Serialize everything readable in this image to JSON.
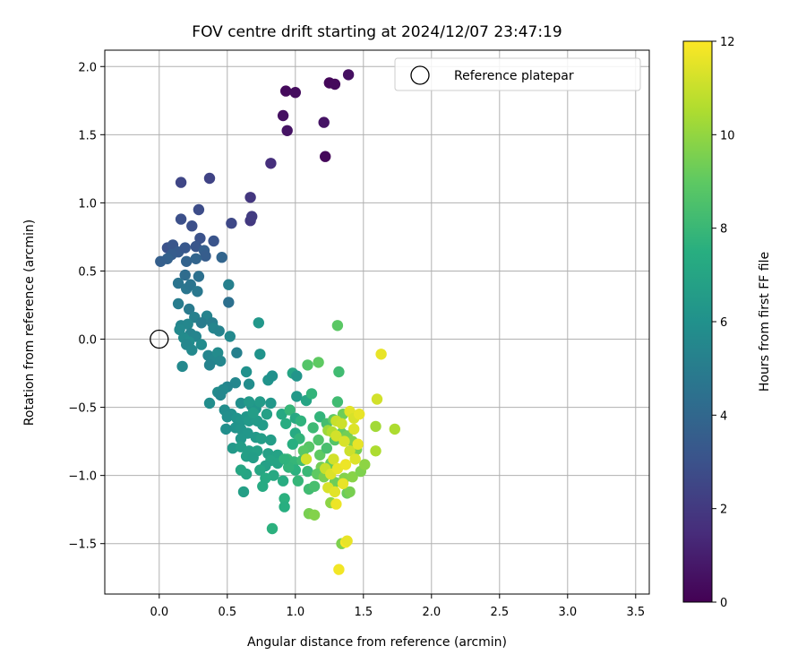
{
  "chart_data": {
    "type": "scatter",
    "title": "FOV centre drift starting at 2024/12/07 23:47:19",
    "xlabel": "Angular distance from reference (arcmin)",
    "ylabel": "Rotation from reference (arcmin)",
    "colorbar_label": "Hours from first FF file",
    "colormap": "viridis",
    "colorbar_range": [
      0,
      12
    ],
    "colorbar_ticks": [
      0,
      2,
      4,
      6,
      8,
      10,
      12
    ],
    "xlim": [
      -0.4,
      3.6
    ],
    "ylim": [
      -1.87,
      2.12
    ],
    "xticks": [
      0.0,
      0.5,
      1.0,
      1.5,
      2.0,
      2.5,
      3.0,
      3.5
    ],
    "xtick_labels": [
      "0.0",
      "0.5",
      "1.0",
      "1.5",
      "2.0",
      "2.5",
      "3.0",
      "3.5"
    ],
    "yticks": [
      -1.5,
      -1.0,
      -0.5,
      0.0,
      0.5,
      1.0,
      1.5,
      2.0
    ],
    "ytick_labels": [
      "−1.5",
      "−1.0",
      "−0.5",
      "0.0",
      "0.5",
      "1.0",
      "1.5",
      "2.0"
    ],
    "grid": true,
    "legend_position": "top-right",
    "reference": {
      "label": "Reference platepar",
      "x": 0.0,
      "y": 0.0
    },
    "points": [
      {
        "x": 0.93,
        "y": 1.82,
        "h": 0.3
      },
      {
        "x": 1.0,
        "y": 1.81,
        "h": 0.4
      },
      {
        "x": 1.25,
        "y": 1.88,
        "h": 0.2
      },
      {
        "x": 1.29,
        "y": 1.87,
        "h": 0.3
      },
      {
        "x": 1.39,
        "y": 1.94,
        "h": 0.5
      },
      {
        "x": 0.91,
        "y": 1.64,
        "h": 0.5
      },
      {
        "x": 0.94,
        "y": 1.53,
        "h": 0.6
      },
      {
        "x": 1.21,
        "y": 1.59,
        "h": 0.6
      },
      {
        "x": 1.22,
        "y": 1.34,
        "h": 0.2
      },
      {
        "x": 0.82,
        "y": 1.29,
        "h": 1.6
      },
      {
        "x": 0.67,
        "y": 1.04,
        "h": 1.9
      },
      {
        "x": 0.67,
        "y": 0.87,
        "h": 2.0
      },
      {
        "x": 0.68,
        "y": 0.9,
        "h": 2.1
      },
      {
        "x": 0.53,
        "y": 0.85,
        "h": 2.6
      },
      {
        "x": 0.37,
        "y": 1.18,
        "h": 2.4
      },
      {
        "x": 0.16,
        "y": 1.15,
        "h": 2.5
      },
      {
        "x": 0.29,
        "y": 0.95,
        "h": 2.8
      },
      {
        "x": 0.16,
        "y": 0.88,
        "h": 2.9
      },
      {
        "x": 0.24,
        "y": 0.83,
        "h": 2.9
      },
      {
        "x": 0.3,
        "y": 0.74,
        "h": 3.0
      },
      {
        "x": 0.4,
        "y": 0.72,
        "h": 3.1
      },
      {
        "x": 0.06,
        "y": 0.67,
        "h": 3.0
      },
      {
        "x": 0.1,
        "y": 0.69,
        "h": 3.2
      },
      {
        "x": 0.14,
        "y": 0.64,
        "h": 3.4
      },
      {
        "x": 0.19,
        "y": 0.67,
        "h": 3.3
      },
      {
        "x": 0.27,
        "y": 0.68,
        "h": 3.2
      },
      {
        "x": 0.33,
        "y": 0.65,
        "h": 3.6
      },
      {
        "x": 0.34,
        "y": 0.61,
        "h": 3.5
      },
      {
        "x": 0.09,
        "y": 0.62,
        "h": 3.5
      },
      {
        "x": 0.06,
        "y": 0.59,
        "h": 3.7
      },
      {
        "x": 0.01,
        "y": 0.57,
        "h": 3.6
      },
      {
        "x": 0.2,
        "y": 0.57,
        "h": 3.8
      },
      {
        "x": 0.27,
        "y": 0.59,
        "h": 3.9
      },
      {
        "x": 0.46,
        "y": 0.6,
        "h": 3.9
      },
      {
        "x": 0.19,
        "y": 0.47,
        "h": 4.2
      },
      {
        "x": 0.29,
        "y": 0.46,
        "h": 4.4
      },
      {
        "x": 0.14,
        "y": 0.41,
        "h": 4.6
      },
      {
        "x": 0.2,
        "y": 0.37,
        "h": 4.7
      },
      {
        "x": 0.23,
        "y": 0.4,
        "h": 4.6
      },
      {
        "x": 0.28,
        "y": 0.35,
        "h": 4.8
      },
      {
        "x": 0.51,
        "y": 0.4,
        "h": 5.2
      },
      {
        "x": 0.51,
        "y": 0.27,
        "h": 4.4
      },
      {
        "x": 0.14,
        "y": 0.26,
        "h": 5.0
      },
      {
        "x": 0.22,
        "y": 0.22,
        "h": 4.9
      },
      {
        "x": 0.26,
        "y": 0.16,
        "h": 5.2
      },
      {
        "x": 0.35,
        "y": 0.17,
        "h": 5.3
      },
      {
        "x": 0.31,
        "y": 0.12,
        "h": 5.0
      },
      {
        "x": 0.16,
        "y": 0.1,
        "h": 5.4
      },
      {
        "x": 0.21,
        "y": 0.11,
        "h": 5.5
      },
      {
        "x": 0.39,
        "y": 0.12,
        "h": 5.1
      },
      {
        "x": 0.4,
        "y": 0.08,
        "h": 5.4
      },
      {
        "x": 0.44,
        "y": 0.06,
        "h": 5.3
      },
      {
        "x": 0.15,
        "y": 0.07,
        "h": 5.6
      },
      {
        "x": 0.23,
        "y": 0.04,
        "h": 5.3
      },
      {
        "x": 0.27,
        "y": 0.02,
        "h": 5.4
      },
      {
        "x": 0.52,
        "y": 0.02,
        "h": 5.6
      },
      {
        "x": 0.18,
        "y": 0.01,
        "h": 5.7
      },
      {
        "x": 0.22,
        "y": -0.02,
        "h": 5.8
      },
      {
        "x": 0.2,
        "y": -0.04,
        "h": 5.5
      },
      {
        "x": 0.31,
        "y": -0.04,
        "h": 5.7
      },
      {
        "x": 0.24,
        "y": -0.08,
        "h": 5.6
      },
      {
        "x": 0.36,
        "y": -0.12,
        "h": 5.4
      },
      {
        "x": 0.4,
        "y": -0.15,
        "h": 5.5
      },
      {
        "x": 0.43,
        "y": -0.1,
        "h": 5.7
      },
      {
        "x": 0.57,
        "y": -0.1,
        "h": 5.2
      },
      {
        "x": 0.37,
        "y": -0.19,
        "h": 5.3
      },
      {
        "x": 0.45,
        "y": -0.16,
        "h": 5.5
      },
      {
        "x": 0.17,
        "y": -0.2,
        "h": 5.6
      },
      {
        "x": 0.73,
        "y": 0.12,
        "h": 6.3
      },
      {
        "x": 0.74,
        "y": -0.11,
        "h": 6.1
      },
      {
        "x": 0.64,
        "y": -0.24,
        "h": 6.0
      },
      {
        "x": 0.8,
        "y": -0.3,
        "h": 6.1
      },
      {
        "x": 0.83,
        "y": -0.27,
        "h": 6.0
      },
      {
        "x": 0.66,
        "y": -0.33,
        "h": 5.8
      },
      {
        "x": 0.56,
        "y": -0.32,
        "h": 5.5
      },
      {
        "x": 0.5,
        "y": -0.35,
        "h": 5.4
      },
      {
        "x": 0.47,
        "y": -0.37,
        "h": 5.6
      },
      {
        "x": 0.43,
        "y": -0.39,
        "h": 5.7
      },
      {
        "x": 0.45,
        "y": -0.41,
        "h": 5.5
      },
      {
        "x": 0.37,
        "y": -0.47,
        "h": 5.8
      },
      {
        "x": 0.6,
        "y": -0.47,
        "h": 5.9
      },
      {
        "x": 0.68,
        "y": -0.49,
        "h": 6.0
      },
      {
        "x": 0.71,
        "y": -0.51,
        "h": 6.2
      },
      {
        "x": 0.53,
        "y": -0.55,
        "h": 6.0
      },
      {
        "x": 0.48,
        "y": -0.52,
        "h": 5.8
      },
      {
        "x": 0.5,
        "y": -0.57,
        "h": 5.9
      },
      {
        "x": 0.57,
        "y": -0.58,
        "h": 6.1
      },
      {
        "x": 0.6,
        "y": -0.6,
        "h": 6.2
      },
      {
        "x": 0.64,
        "y": -0.57,
        "h": 6.3
      },
      {
        "x": 0.66,
        "y": -0.6,
        "h": 6.4
      },
      {
        "x": 0.72,
        "y": -0.6,
        "h": 6.5
      },
      {
        "x": 0.76,
        "y": -0.63,
        "h": 6.5
      },
      {
        "x": 0.56,
        "y": -0.65,
        "h": 6.1
      },
      {
        "x": 0.49,
        "y": -0.66,
        "h": 5.9
      },
      {
        "x": 0.6,
        "y": -0.66,
        "h": 6.2
      },
      {
        "x": 0.65,
        "y": -0.69,
        "h": 6.3
      },
      {
        "x": 0.71,
        "y": -0.72,
        "h": 6.4
      },
      {
        "x": 0.75,
        "y": -0.73,
        "h": 6.6
      },
      {
        "x": 0.82,
        "y": -0.74,
        "h": 6.6
      },
      {
        "x": 0.6,
        "y": -0.73,
        "h": 6.3
      },
      {
        "x": 0.54,
        "y": -0.8,
        "h": 6.4
      },
      {
        "x": 0.6,
        "y": -0.79,
        "h": 6.6
      },
      {
        "x": 0.66,
        "y": -0.82,
        "h": 6.7
      },
      {
        "x": 0.72,
        "y": -0.82,
        "h": 6.8
      },
      {
        "x": 0.64,
        "y": -0.86,
        "h": 6.7
      },
      {
        "x": 0.69,
        "y": -0.87,
        "h": 6.6
      },
      {
        "x": 0.8,
        "y": -0.84,
        "h": 6.8
      },
      {
        "x": 0.87,
        "y": -0.85,
        "h": 6.9
      },
      {
        "x": 0.82,
        "y": -0.89,
        "h": 7.0
      },
      {
        "x": 0.78,
        "y": -0.93,
        "h": 6.8
      },
      {
        "x": 0.87,
        "y": -0.91,
        "h": 7.0
      },
      {
        "x": 0.74,
        "y": -0.96,
        "h": 7.1
      },
      {
        "x": 0.64,
        "y": -0.99,
        "h": 7.0
      },
      {
        "x": 0.6,
        "y": -0.96,
        "h": 7.1
      },
      {
        "x": 0.84,
        "y": -1.0,
        "h": 7.2
      },
      {
        "x": 0.78,
        "y": -1.02,
        "h": 7.3
      },
      {
        "x": 0.62,
        "y": -1.12,
        "h": 6.7
      },
      {
        "x": 0.76,
        "y": -1.08,
        "h": 7.3
      },
      {
        "x": 0.91,
        "y": -1.04,
        "h": 7.4
      },
      {
        "x": 0.92,
        "y": -1.17,
        "h": 7.6
      },
      {
        "x": 0.92,
        "y": -1.23,
        "h": 7.5
      },
      {
        "x": 0.83,
        "y": -1.39,
        "h": 7.6
      },
      {
        "x": 0.66,
        "y": -0.46,
        "h": 6.4
      },
      {
        "x": 0.74,
        "y": -0.46,
        "h": 6.5
      },
      {
        "x": 0.69,
        "y": -0.54,
        "h": 6.6
      },
      {
        "x": 0.79,
        "y": -0.55,
        "h": 6.8
      },
      {
        "x": 0.82,
        "y": -0.47,
        "h": 6.3
      },
      {
        "x": 0.9,
        "y": -0.55,
        "h": 7.2
      },
      {
        "x": 0.96,
        "y": -0.52,
        "h": 7.9
      },
      {
        "x": 0.93,
        "y": -0.62,
        "h": 7.4
      },
      {
        "x": 1.0,
        "y": -0.58,
        "h": 7.2
      },
      {
        "x": 1.04,
        "y": -0.6,
        "h": 7.7
      },
      {
        "x": 1.0,
        "y": -0.69,
        "h": 7.3
      },
      {
        "x": 1.03,
        "y": -0.73,
        "h": 7.8
      },
      {
        "x": 0.98,
        "y": -0.77,
        "h": 7.5
      },
      {
        "x": 0.94,
        "y": -0.88,
        "h": 8.0
      },
      {
        "x": 0.99,
        "y": -0.9,
        "h": 7.9
      },
      {
        "x": 1.05,
        "y": -0.89,
        "h": 8.2
      },
      {
        "x": 1.0,
        "y": -0.96,
        "h": 7.6
      },
      {
        "x": 0.95,
        "y": -0.94,
        "h": 7.8
      },
      {
        "x": 0.92,
        "y": -0.88,
        "h": 7.7
      },
      {
        "x": 1.09,
        "y": -0.97,
        "h": 8.0
      },
      {
        "x": 1.02,
        "y": -1.04,
        "h": 7.9
      },
      {
        "x": 1.1,
        "y": -1.1,
        "h": 8.2
      },
      {
        "x": 1.14,
        "y": -1.08,
        "h": 8.4
      },
      {
        "x": 0.98,
        "y": -0.25,
        "h": 7.0
      },
      {
        "x": 1.01,
        "y": -0.27,
        "h": 6.2
      },
      {
        "x": 1.01,
        "y": -0.42,
        "h": 6.4
      },
      {
        "x": 1.08,
        "y": -0.45,
        "h": 7.0
      },
      {
        "x": 1.12,
        "y": -0.4,
        "h": 7.8
      },
      {
        "x": 1.09,
        "y": -0.19,
        "h": 8.7
      },
      {
        "x": 1.17,
        "y": -0.17,
        "h": 9.0
      },
      {
        "x": 1.32,
        "y": -0.24,
        "h": 8.2
      },
      {
        "x": 1.31,
        "y": 0.1,
        "h": 8.9
      },
      {
        "x": 1.18,
        "y": -0.57,
        "h": 7.8
      },
      {
        "x": 1.13,
        "y": -0.65,
        "h": 8.1
      },
      {
        "x": 1.23,
        "y": -0.62,
        "h": 8.3
      },
      {
        "x": 1.28,
        "y": -0.59,
        "h": 9.0
      },
      {
        "x": 1.17,
        "y": -0.74,
        "h": 8.6
      },
      {
        "x": 1.1,
        "y": -0.79,
        "h": 8.8
      },
      {
        "x": 1.06,
        "y": -0.82,
        "h": 8.9
      },
      {
        "x": 1.18,
        "y": -0.85,
        "h": 9.0
      },
      {
        "x": 1.23,
        "y": -0.8,
        "h": 8.4
      },
      {
        "x": 1.29,
        "y": -0.74,
        "h": 8.7
      },
      {
        "x": 1.31,
        "y": -0.46,
        "h": 8.2
      },
      {
        "x": 1.35,
        "y": -0.55,
        "h": 9.3
      },
      {
        "x": 1.34,
        "y": -0.69,
        "h": 9.1
      },
      {
        "x": 1.38,
        "y": -0.71,
        "h": 9.4
      },
      {
        "x": 1.42,
        "y": -0.75,
        "h": 9.6
      },
      {
        "x": 1.45,
        "y": -0.81,
        "h": 9.5
      },
      {
        "x": 1.26,
        "y": -0.91,
        "h": 9.2
      },
      {
        "x": 1.19,
        "y": -0.94,
        "h": 9.4
      },
      {
        "x": 1.16,
        "y": -0.99,
        "h": 9.0
      },
      {
        "x": 1.21,
        "y": -1.01,
        "h": 9.5
      },
      {
        "x": 1.29,
        "y": -1.05,
        "h": 9.3
      },
      {
        "x": 1.36,
        "y": -1.02,
        "h": 9.7
      },
      {
        "x": 1.42,
        "y": -1.01,
        "h": 9.8
      },
      {
        "x": 1.48,
        "y": -0.97,
        "h": 9.6
      },
      {
        "x": 1.51,
        "y": -0.92,
        "h": 9.9
      },
      {
        "x": 1.1,
        "y": -1.28,
        "h": 9.5
      },
      {
        "x": 1.14,
        "y": -1.29,
        "h": 9.7
      },
      {
        "x": 1.26,
        "y": -1.2,
        "h": 9.9
      },
      {
        "x": 1.38,
        "y": -1.13,
        "h": 9.2
      },
      {
        "x": 1.4,
        "y": -1.12,
        "h": 9.5
      },
      {
        "x": 1.34,
        "y": -1.5,
        "h": 9.6
      },
      {
        "x": 1.59,
        "y": -0.64,
        "h": 10.3
      },
      {
        "x": 1.59,
        "y": -0.82,
        "h": 10.5
      },
      {
        "x": 1.73,
        "y": -0.66,
        "h": 10.5
      },
      {
        "x": 1.24,
        "y": -0.67,
        "h": 10.2
      },
      {
        "x": 1.27,
        "y": -0.68,
        "h": 10.6
      },
      {
        "x": 1.3,
        "y": -0.6,
        "h": 11.0
      },
      {
        "x": 1.34,
        "y": -0.62,
        "h": 11.1
      },
      {
        "x": 1.3,
        "y": -0.71,
        "h": 11.2
      },
      {
        "x": 1.36,
        "y": -0.75,
        "h": 11.3
      },
      {
        "x": 1.4,
        "y": -0.53,
        "h": 11.5
      },
      {
        "x": 1.43,
        "y": -0.58,
        "h": 11.3
      },
      {
        "x": 1.43,
        "y": -0.66,
        "h": 11.4
      },
      {
        "x": 1.47,
        "y": -0.55,
        "h": 11.6
      },
      {
        "x": 1.6,
        "y": -0.44,
        "h": 11.2
      },
      {
        "x": 1.63,
        "y": -0.11,
        "h": 11.6
      },
      {
        "x": 1.4,
        "y": -0.82,
        "h": 11.1
      },
      {
        "x": 1.44,
        "y": -0.88,
        "h": 11.4
      },
      {
        "x": 1.46,
        "y": -0.77,
        "h": 11.6
      },
      {
        "x": 1.28,
        "y": -0.88,
        "h": 11.2
      },
      {
        "x": 1.22,
        "y": -0.95,
        "h": 11.0
      },
      {
        "x": 1.26,
        "y": -0.99,
        "h": 11.4
      },
      {
        "x": 1.31,
        "y": -0.95,
        "h": 11.6
      },
      {
        "x": 1.37,
        "y": -0.92,
        "h": 11.7
      },
      {
        "x": 1.24,
        "y": -1.09,
        "h": 11.3
      },
      {
        "x": 1.29,
        "y": -1.12,
        "h": 11.5
      },
      {
        "x": 1.35,
        "y": -1.06,
        "h": 11.6
      },
      {
        "x": 1.3,
        "y": -1.21,
        "h": 11.7
      },
      {
        "x": 1.37,
        "y": -1.49,
        "h": 11.9
      },
      {
        "x": 1.38,
        "y": -1.48,
        "h": 11.6
      },
      {
        "x": 1.32,
        "y": -1.69,
        "h": 11.8
      },
      {
        "x": 1.08,
        "y": -0.88,
        "h": 11.2
      }
    ]
  }
}
